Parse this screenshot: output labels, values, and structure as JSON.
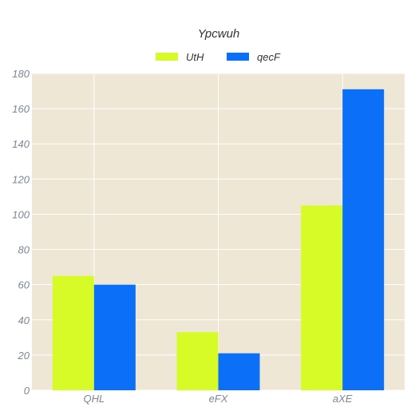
{
  "chart_data": {
    "type": "bar",
    "title": "Ypcwuh",
    "xlabel": "",
    "ylabel": "",
    "categories": [
      "QHL",
      "eFX",
      "aXE"
    ],
    "series": [
      {
        "name": "UtH",
        "values": [
          65,
          33,
          105
        ]
      },
      {
        "name": "qecF",
        "values": [
          60,
          21,
          171
        ]
      }
    ],
    "ylim": [
      0,
      180
    ],
    "yticks": [
      0,
      20,
      40,
      60,
      80,
      100,
      120,
      140,
      160,
      180
    ],
    "legend_position": "top-center",
    "grid": true
  },
  "colors": {
    "series": [
      "#d6fb26",
      "#0b6ff7"
    ],
    "plot_background": "#efe7d5",
    "grid": "#ffffff"
  }
}
